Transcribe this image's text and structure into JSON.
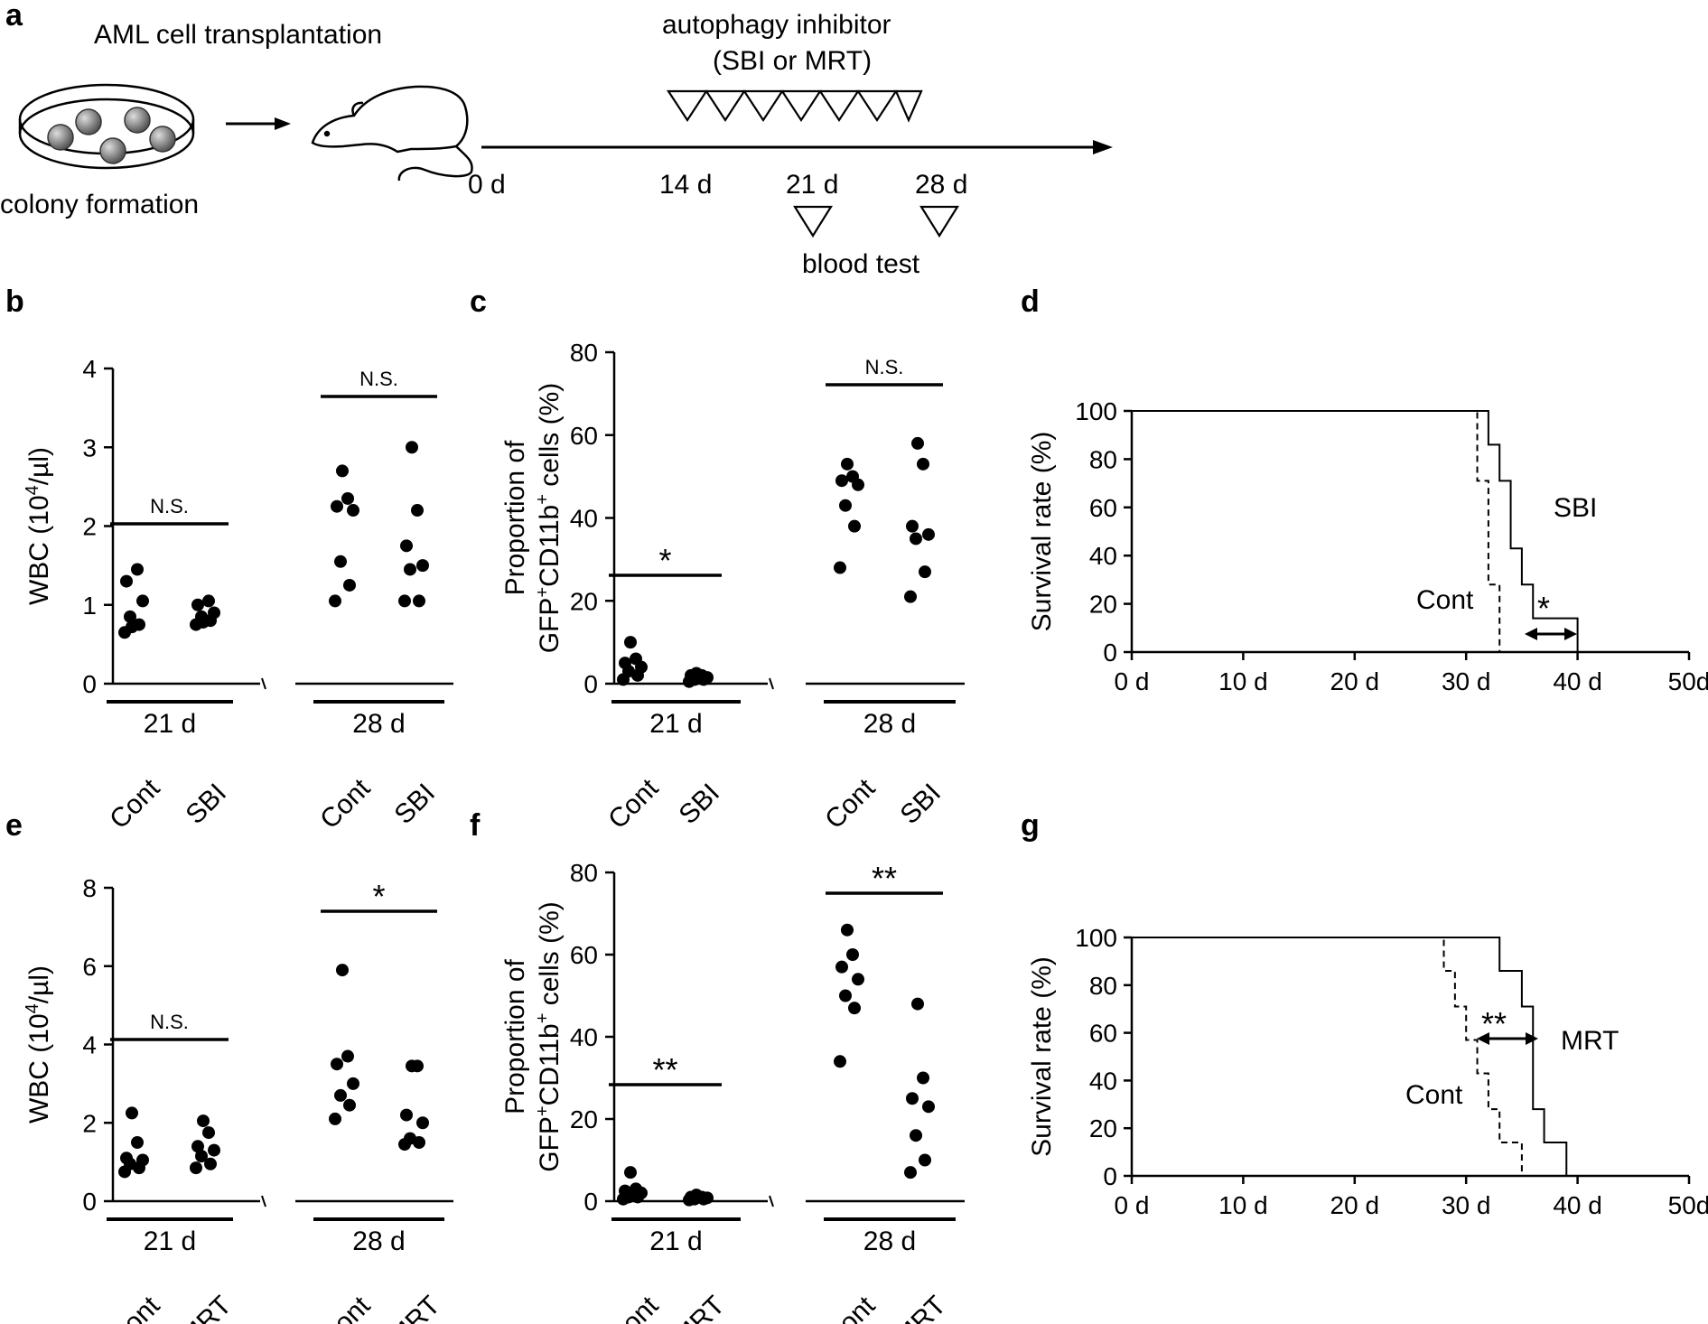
{
  "panel_labels": [
    "a",
    "b",
    "c",
    "d",
    "e",
    "f",
    "g"
  ],
  "schematic": {
    "transplant_label": "AML cell transplantation",
    "colony_label": "colony formation",
    "inhibitor_line1": "autophagy inhibitor",
    "inhibitor_line2": "(SBI or MRT)",
    "blood_test_label": "blood test",
    "timeline_ticks": [
      "0 d",
      "14 d",
      "21 d",
      "28 d"
    ]
  },
  "chart_data": [
    {
      "id": "b",
      "type": "scatter",
      "ylabel_main": "WBC (10",
      "ylabel_sup": "4",
      "ylabel_end": "/µl)",
      "ylim": [
        0,
        4
      ],
      "yticks": [
        "0",
        "1",
        "2",
        "3",
        "4"
      ],
      "groups": [
        {
          "day": "21 d",
          "signif": "N.S.",
          "categories": [
            "Cont",
            "SBI"
          ],
          "values": [
            [
              0.65,
              0.75,
              0.85,
              1.05,
              1.3,
              1.45,
              0.72
            ],
            [
              0.75,
              0.8,
              0.85,
              0.9,
              1.0,
              1.05,
              0.78
            ]
          ]
        },
        {
          "day": "28 d",
          "signif": "N.S.",
          "categories": [
            "Cont",
            "SBI"
          ],
          "values": [
            [
              1.05,
              1.25,
              1.55,
              2.2,
              2.25,
              2.35,
              2.7
            ],
            [
              1.05,
              1.05,
              1.45,
              1.5,
              1.75,
              2.2,
              3.0
            ]
          ]
        }
      ]
    },
    {
      "id": "c",
      "type": "scatter",
      "ylabel_line1": "Proportion of",
      "ylabel_line2_main": "GFP",
      "ylabel_line2_sup1": "+",
      "ylabel_line2_mid": "CD11b",
      "ylabel_line2_sup2": "+",
      "ylabel_line2_end": " cells (%)",
      "ylim": [
        0,
        80
      ],
      "yticks": [
        "0",
        "20",
        "40",
        "60",
        "80"
      ],
      "groups": [
        {
          "day": "21 d",
          "signif": "*",
          "categories": [
            "Cont",
            "SBI"
          ],
          "values": [
            [
              1,
              2,
              3,
              4,
              5,
              6,
              10
            ],
            [
              0.5,
              1,
              1,
              1.5,
              2,
              2,
              2.5
            ]
          ]
        },
        {
          "day": "28 d",
          "signif": "N.S.",
          "categories": [
            "Cont",
            "SBI"
          ],
          "values": [
            [
              28,
              38,
              43,
              48,
              49,
              50,
              53
            ],
            [
              21,
              27,
              35,
              36,
              38,
              53,
              58
            ]
          ]
        }
      ]
    },
    {
      "id": "d",
      "type": "line",
      "ylabel": "Survival rate (%)",
      "ylim": [
        0,
        100
      ],
      "yticks": [
        "0",
        "20",
        "40",
        "60",
        "80",
        "100"
      ],
      "xlim": [
        0,
        50
      ],
      "xticks": [
        "0 d",
        "10 d",
        "20 d",
        "30 d",
        "40 d",
        "50d"
      ],
      "series": [
        {
          "name": "SBI",
          "style": "solid",
          "x": [
            0,
            32,
            32,
            33,
            33,
            34,
            34,
            35,
            35,
            36,
            36,
            38,
            38,
            40,
            40
          ],
          "y": [
            100,
            100,
            86,
            86,
            71,
            71,
            43,
            43,
            28,
            28,
            14,
            14,
            14,
            14,
            0
          ]
        },
        {
          "name": "Cont",
          "style": "dashed",
          "x": [
            0,
            31,
            31,
            32,
            32,
            33,
            33
          ],
          "y": [
            100,
            100,
            71,
            71,
            28,
            28,
            0
          ]
        }
      ],
      "signif": "*",
      "series_labels": [
        "SBI",
        "Cont"
      ]
    },
    {
      "id": "e",
      "type": "scatter",
      "ylabel_main": "WBC (10",
      "ylabel_sup": "4",
      "ylabel_end": "/µl)",
      "ylim": [
        0,
        8
      ],
      "yticks": [
        "0",
        "2",
        "4",
        "6",
        "8"
      ],
      "groups": [
        {
          "day": "21 d",
          "signif": "N.S.",
          "categories": [
            "Cont",
            "MRT"
          ],
          "values": [
            [
              0.75,
              0.85,
              0.95,
              1.05,
              1.1,
              1.5,
              2.25
            ],
            [
              0.85,
              0.95,
              1.15,
              1.3,
              1.4,
              1.75,
              2.05
            ]
          ]
        },
        {
          "day": "28 d",
          "signif": "*",
          "categories": [
            "Cont",
            "MRT"
          ],
          "values": [
            [
              2.1,
              2.45,
              2.7,
              3.0,
              3.5,
              3.7,
              5.9
            ],
            [
              1.45,
              1.5,
              1.6,
              2.0,
              2.2,
              3.45,
              3.45
            ]
          ]
        }
      ]
    },
    {
      "id": "f",
      "type": "scatter",
      "ylabel_line1": "Proportion of",
      "ylabel_line2_main": "GFP",
      "ylabel_line2_sup1": "+",
      "ylabel_line2_mid": "CD11b",
      "ylabel_line2_sup2": "+",
      "ylabel_line2_end": " cells (%)",
      "ylim": [
        0,
        80
      ],
      "yticks": [
        "0",
        "20",
        "40",
        "60",
        "80"
      ],
      "groups": [
        {
          "day": "21 d",
          "signif": "**",
          "categories": [
            "Cont",
            "MRT"
          ],
          "values": [
            [
              0.5,
              1,
              1,
              2,
              2.5,
              3,
              7
            ],
            [
              0.3,
              0.5,
              0.5,
              0.8,
              1,
              1,
              1.5
            ]
          ]
        },
        {
          "day": "28 d",
          "signif": "**",
          "categories": [
            "Cont",
            "MRT"
          ],
          "values": [
            [
              34,
              47,
              50,
              54,
              57,
              60,
              66
            ],
            [
              7,
              10,
              16,
              23,
              25,
              30,
              48
            ]
          ]
        }
      ]
    },
    {
      "id": "g",
      "type": "line",
      "ylabel": "Survival rate (%)",
      "ylim": [
        0,
        100
      ],
      "yticks": [
        "0",
        "20",
        "40",
        "60",
        "80",
        "100"
      ],
      "xlim": [
        0,
        50
      ],
      "xticks": [
        "0 d",
        "10 d",
        "20 d",
        "30 d",
        "40 d",
        "50d"
      ],
      "series": [
        {
          "name": "MRT",
          "style": "solid",
          "x": [
            0,
            33,
            33,
            35,
            35,
            36,
            36,
            37,
            37,
            39,
            39
          ],
          "y": [
            100,
            100,
            86,
            86,
            71,
            71,
            28,
            28,
            14,
            14,
            0
          ]
        },
        {
          "name": "Cont",
          "style": "dashed",
          "x": [
            0,
            28,
            28,
            29,
            29,
            30,
            30,
            31,
            31,
            32,
            32,
            33,
            33,
            35,
            35
          ],
          "y": [
            100,
            100,
            86,
            86,
            71,
            71,
            57,
            57,
            43,
            43,
            28,
            28,
            14,
            14,
            0
          ]
        }
      ],
      "signif": "**",
      "series_labels": [
        "MRT",
        "Cont"
      ]
    }
  ]
}
